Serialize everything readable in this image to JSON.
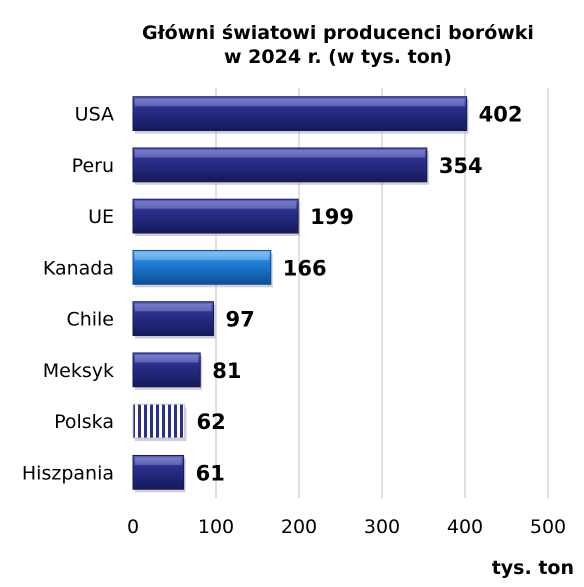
{
  "chart_data": {
    "type": "bar",
    "orientation": "horizontal",
    "title_lines": [
      "Główni światowi producenci borówki",
      "w 2024 r. (w tys. ton)"
    ],
    "xlabel": "tys. ton",
    "ylabel": "",
    "xlim": [
      0,
      500
    ],
    "x_ticks": [
      "0",
      "100",
      "200",
      "300",
      "400",
      "500"
    ],
    "grid": "vertical",
    "categories": [
      "USA",
      "Peru",
      "UE",
      "Kanada",
      "Chile",
      "Meksyk",
      "Polska",
      "Hiszpania"
    ],
    "values": [
      402,
      354,
      199,
      166,
      97,
      81,
      62,
      61
    ],
    "data_labels": [
      "402",
      "354",
      "199",
      "166",
      "97",
      "81",
      "62",
      "61"
    ],
    "bar_styles": [
      "navy",
      "navy",
      "navy",
      "blue",
      "navy",
      "navy",
      "striped",
      "navy"
    ],
    "colors": {
      "navy": "#2a2f8c",
      "navy_dark": "#151a5a",
      "blue": "#1f7fd6",
      "blue_dark": "#0d4f96",
      "grid": "#d6d6d6"
    }
  }
}
